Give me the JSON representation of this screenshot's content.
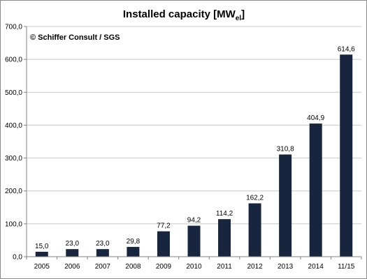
{
  "chart_data": {
    "type": "bar",
    "title": "Installed capacity [MW",
    "title_subscript": "el",
    "title_suffix": "]",
    "annotation": "© Schiffer Consult / SGS",
    "categories": [
      "2005",
      "2006",
      "2007",
      "2008",
      "2009",
      "2010",
      "2011",
      "2012",
      "2013",
      "2014",
      "11/15"
    ],
    "values": [
      15.0,
      23.0,
      23.0,
      29.8,
      77.2,
      94.2,
      114.2,
      162.2,
      310.8,
      404.9,
      614.6
    ],
    "data_labels": [
      "15,0",
      "23,0",
      "23,0",
      "29,8",
      "77,2",
      "94,2",
      "114,2",
      "162,2",
      "310,8",
      "404,9",
      "614,6"
    ],
    "y_ticks": [
      "0,0",
      "100,0",
      "200,0",
      "300,0",
      "400,0",
      "500,0",
      "600,0",
      "700,0"
    ],
    "y_tick_values": [
      0,
      100,
      200,
      300,
      400,
      500,
      600,
      700
    ],
    "ylim": [
      0,
      700
    ],
    "xlabel": "",
    "ylabel": "",
    "grid": true,
    "legend": "none",
    "bar_color": "#17253f"
  }
}
